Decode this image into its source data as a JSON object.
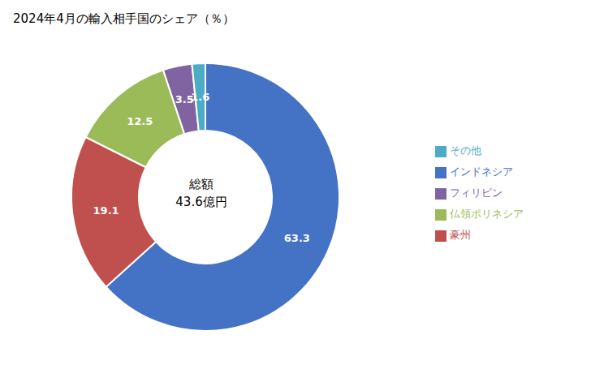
{
  "chart_data": {
    "type": "pie",
    "title": "2024年4月の輸入相手国のシェア（％）",
    "categories": [
      "インドネシア",
      "豪州",
      "仏領ポリネシア",
      "フィリピン",
      "その他"
    ],
    "values": [
      63.3,
      19.1,
      12.5,
      3.5,
      1.6
    ],
    "colors": [
      "#4472C4",
      "#C0504D",
      "#9BBB59",
      "#8064A2",
      "#4BACC6"
    ],
    "data_labels": true,
    "legend": "right",
    "annotations": [
      "総額",
      "43.6億円"
    ]
  }
}
